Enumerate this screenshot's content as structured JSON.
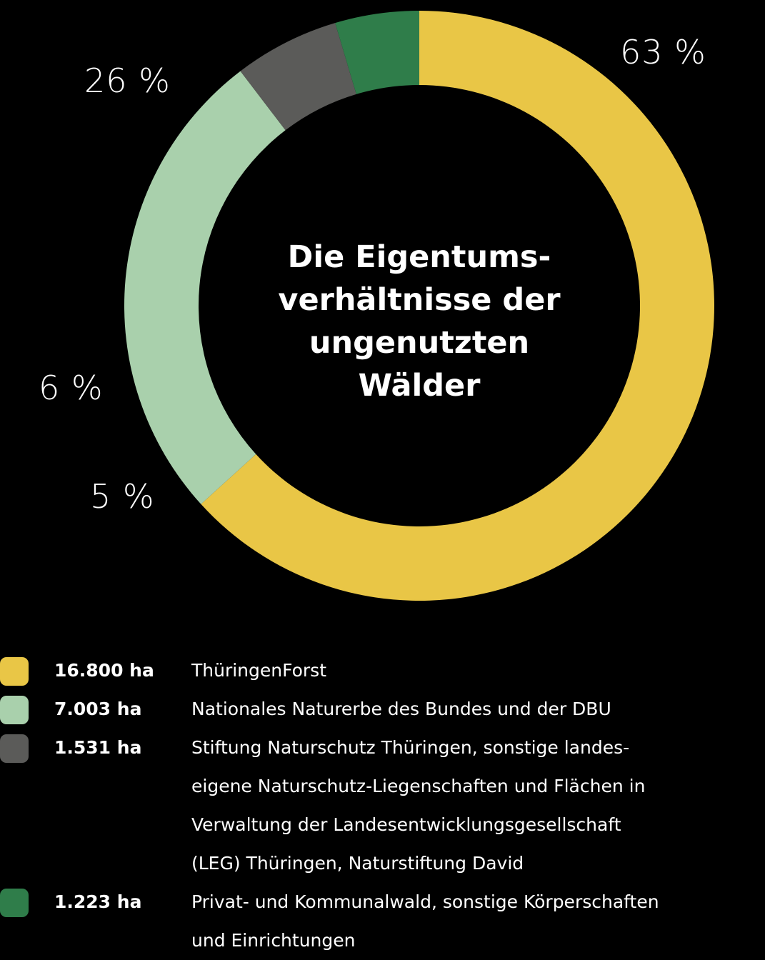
{
  "title_lines": [
    "Die Eigentums-",
    "verhältnisse der",
    "ungenutzten",
    "Wälder"
  ],
  "labels": {
    "pct_thueringenforst": "63 %",
    "pct_nne": "26 %",
    "pct_stiftung": "6 %",
    "pct_privat": "5 %"
  },
  "colors": {
    "background": "#000000",
    "thueringenforst": "#E9C646",
    "nne": "#A9D0AC",
    "stiftung": "#5B5B59",
    "privat": "#2F7D4A"
  },
  "legend": [
    {
      "color": "#E9C646",
      "amount": "16.800 ha",
      "description": "ThüringenForst"
    },
    {
      "color": "#A9D0AC",
      "amount": "7.003 ha",
      "description": "Nationales Naturerbe des Bundes und der DBU"
    },
    {
      "color": "#5B5B59",
      "amount": "1.531 ha",
      "description": "Stiftung Naturschutz Thüringen, sonstige landes-\neigene Naturschutz-Liegenschaften und Flächen in\nVerwaltung der Landesentwicklungsgesellschaft\n(LEG) Thüringen, Naturstiftung David"
    },
    {
      "color": "#2F7D4A",
      "amount": "1.223 ha",
      "description": "Privat- und Kommunalwald, sonstige Körperschaften\nund Einrichtungen"
    }
  ],
  "chart_data": {
    "type": "pie",
    "subtype": "donut",
    "title": "Die Eigentumsverhältnisse der ungenutzten Wälder",
    "unit": "ha",
    "categories": [
      "ThüringenForst",
      "Nationales Naturerbe des Bundes und der DBU",
      "Stiftung Naturschutz Thüringen, sonstige landeseigene Naturschutz-Liegenschaften und Flächen in Verwaltung der Landesentwicklungsgesellschaft (LEG) Thüringen, Naturstiftung David",
      "Privat- und Kommunalwald, sonstige Körperschaften und Einrichtungen"
    ],
    "values": [
      16800,
      7003,
      1531,
      1223
    ],
    "percentages": [
      63,
      26,
      6,
      5
    ],
    "percent_labels": [
      "63 %",
      "26 %",
      "6 %",
      "5 %"
    ],
    "colors": [
      "#E9C646",
      "#A9D0AC",
      "#5B5B59",
      "#2F7D4A"
    ],
    "start_angle": "12 o'clock, clockwise",
    "legend_position": "bottom"
  }
}
